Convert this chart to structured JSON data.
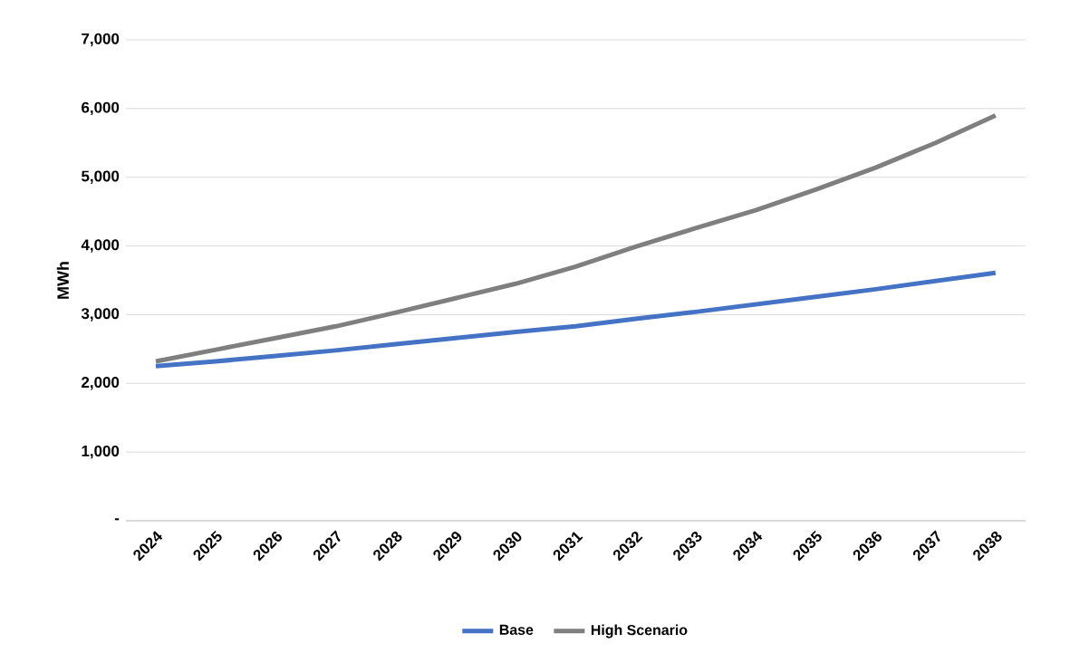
{
  "chart_data": {
    "type": "line",
    "ylabel": "MWh",
    "categories": [
      "2024",
      "2025",
      "2026",
      "2027",
      "2028",
      "2029",
      "2030",
      "2031",
      "2032",
      "2033",
      "2034",
      "2035",
      "2036",
      "2037",
      "2038"
    ],
    "series": [
      {
        "name": "Base",
        "color": "#4472c4",
        "values": [
          2250,
          2320,
          2400,
          2480,
          2570,
          2660,
          2750,
          2830,
          2940,
          3040,
          3150,
          3260,
          3370,
          3490,
          3610
        ]
      },
      {
        "name": "High Scenario",
        "color": "#7f7f7f",
        "values": [
          2320,
          2490,
          2660,
          2830,
          3030,
          3240,
          3450,
          3700,
          3990,
          4260,
          4520,
          4820,
          5140,
          5500,
          5900
        ]
      }
    ],
    "ylim": [
      0,
      7000
    ],
    "yticks": [
      {
        "value": 0,
        "label": "-"
      },
      {
        "value": 1000,
        "label": "1,000"
      },
      {
        "value": 2000,
        "label": "2,000"
      },
      {
        "value": 3000,
        "label": "3,000"
      },
      {
        "value": 4000,
        "label": "4,000"
      },
      {
        "value": 5000,
        "label": "5,000"
      },
      {
        "value": 6000,
        "label": "6,000"
      },
      {
        "value": 7000,
        "label": "7,000"
      }
    ],
    "grid": "y",
    "legend": "bottom",
    "marker": "none",
    "line_style": "solid"
  }
}
